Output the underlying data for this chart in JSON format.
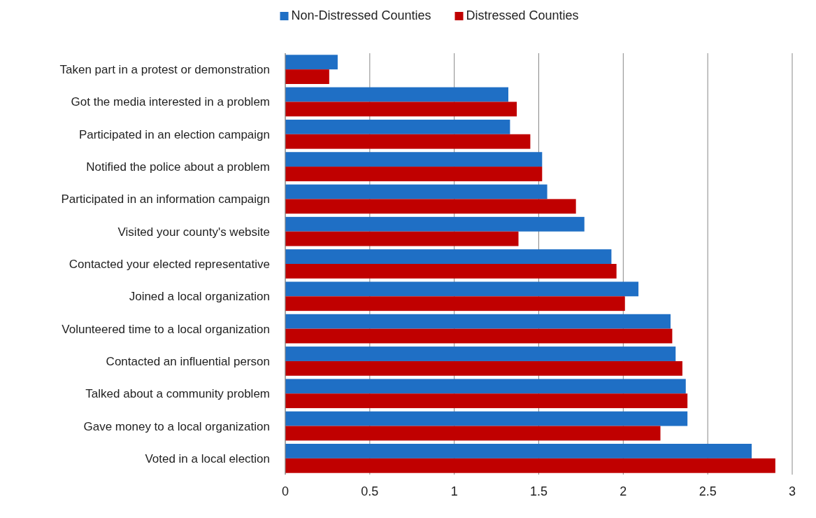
{
  "chart_data": {
    "type": "bar",
    "orientation": "horizontal",
    "categories": [
      "Taken part in a protest or demonstration",
      "Got the media interested in a problem",
      "Participated in an election campaign",
      "Notified the police about a problem",
      "Participated in an information campaign",
      "Visited your county's website",
      "Contacted your elected representative",
      "Joined a local organization",
      "Volunteered time to a local organization",
      "Contacted an influential person",
      "Talked about a community problem",
      "Gave money to a local organization",
      "Voted in a local election"
    ],
    "series": [
      {
        "name": "Non-Distressed Counties",
        "color": "#1f6fc5",
        "values": [
          0.31,
          1.32,
          1.33,
          1.52,
          1.55,
          1.77,
          1.93,
          2.09,
          2.28,
          2.31,
          2.37,
          2.38,
          2.76
        ]
      },
      {
        "name": "Distressed Counties",
        "color": "#c00000",
        "values": [
          0.26,
          1.37,
          1.45,
          1.52,
          1.72,
          1.38,
          1.96,
          2.01,
          2.29,
          2.35,
          2.38,
          2.22,
          2.9
        ]
      }
    ],
    "xlim": [
      0,
      3
    ],
    "xticks": [
      0,
      0.5,
      1,
      1.5,
      2,
      2.5,
      3
    ],
    "grid": "x",
    "legend": "top"
  }
}
